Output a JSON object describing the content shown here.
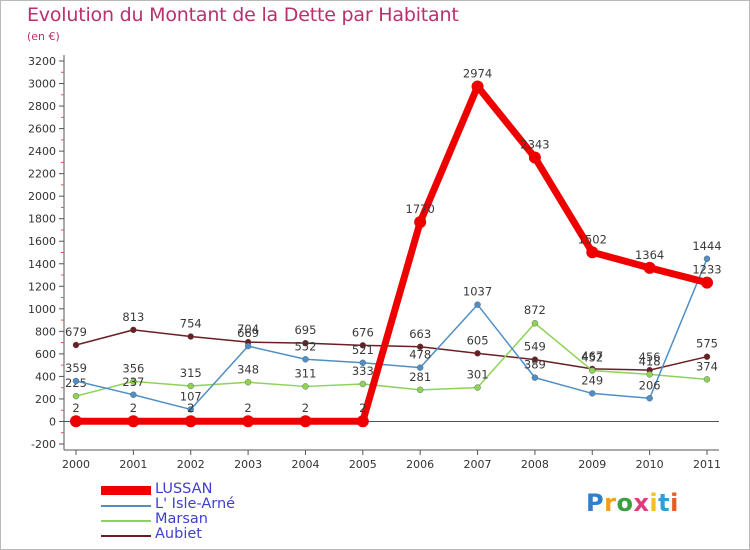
{
  "chart_data": {
    "type": "line",
    "title": "Evolution du Montant de la Dette par Habitant",
    "subtitle": "(en €)",
    "categories": [
      "2000",
      "2001",
      "2002",
      "2003",
      "2004",
      "2005",
      "2006",
      "2007",
      "2008",
      "2009",
      "2010",
      "2011"
    ],
    "ylim": [
      -200,
      3200
    ],
    "yticks": [
      -200,
      0,
      200,
      400,
      600,
      800,
      1000,
      1200,
      1400,
      1600,
      1800,
      2000,
      2200,
      2400,
      2600,
      2800,
      3000,
      3200
    ],
    "grid": false,
    "legend_position": "bottom-left",
    "series": [
      {
        "name": "Aubiet",
        "color": "#6b1f24",
        "values": [
          679,
          813,
          754,
          704,
          695,
          676,
          663,
          605,
          549,
          467,
          456,
          575
        ]
      },
      {
        "name": "Marsan",
        "color": "#8ed357",
        "values": [
          225,
          356,
          315,
          348,
          311,
          333,
          281,
          301,
          872,
          452,
          418,
          374
        ]
      },
      {
        "name": "L' Isle-Arné",
        "color": "#4f8fc6",
        "values": [
          359,
          237,
          107,
          669,
          552,
          521,
          478,
          1037,
          389,
          249,
          206,
          1444
        ]
      },
      {
        "name": "LUSSAN",
        "color": "#ee0000",
        "values": [
          2,
          2,
          2,
          2,
          2,
          2,
          1770,
          2974,
          2343,
          1502,
          1364,
          1233
        ]
      }
    ]
  },
  "legend": [
    "LUSSAN",
    "L' Isle-Arné",
    "Marsan",
    "Aubiet"
  ],
  "logo": {
    "letters": [
      "P",
      "r",
      "o",
      "x",
      "i",
      "t",
      "i"
    ],
    "colors": [
      "#2f7fd0",
      "#f0a020",
      "#3aa040",
      "#e23a7a",
      "#f4c020",
      "#2f9fd8",
      "#e85a20"
    ]
  }
}
